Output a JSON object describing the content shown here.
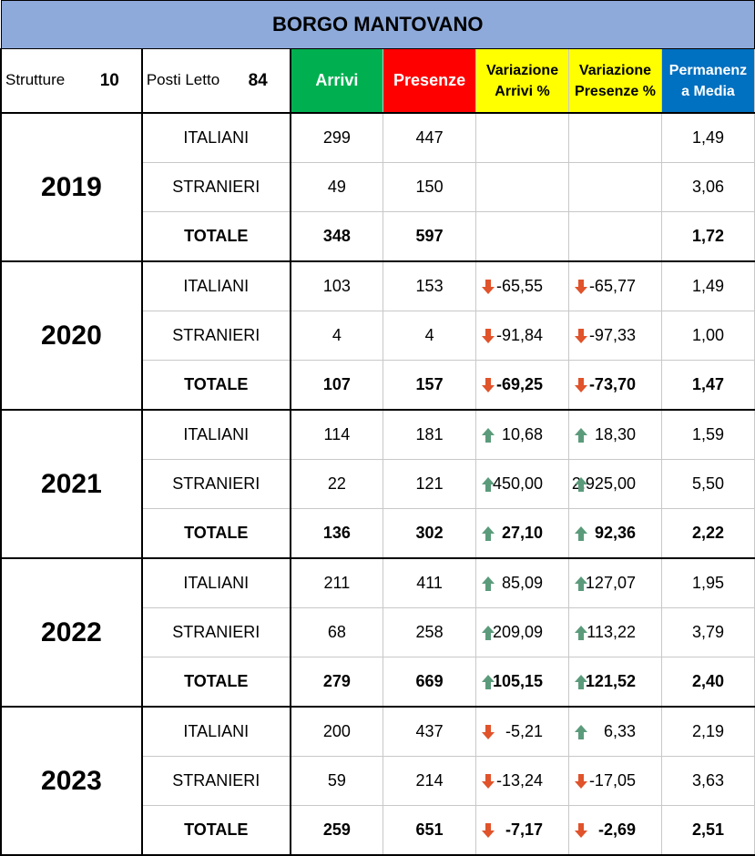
{
  "title": "BORGO MANTOVANO",
  "info": {
    "strutture_label": "Strutture",
    "strutture_value": "10",
    "posti_label": "Posti Letto",
    "posti_value": "84"
  },
  "headers": {
    "arrivi": "Arrivi",
    "presenze": "Presenze",
    "var_arrivi_1": "Variazione",
    "var_arrivi_2": "Arrivi %",
    "var_presenze_1": "Variazione",
    "var_presenze_2": "Presenze %",
    "perm_1": "Permanenz",
    "perm_2": "a Media"
  },
  "colors": {
    "arrivi": "#00b050",
    "presenze": "#ff0000",
    "variazione": "#ffff00",
    "permanenza": "#0070c0",
    "title": "#8eaadb",
    "arrow_up": "#5b9b7b",
    "arrow_down": "#e0532b"
  },
  "years": [
    {
      "year": "2019",
      "rows": [
        {
          "label": "ITALIANI",
          "arrivi": "299",
          "presenze": "447",
          "var_arrivi": "",
          "var_arrivi_dir": "",
          "var_presenze": "",
          "var_presenze_dir": "",
          "permanenza": "1,49"
        },
        {
          "label": "STRANIERI",
          "arrivi": "49",
          "presenze": "150",
          "var_arrivi": "",
          "var_arrivi_dir": "",
          "var_presenze": "",
          "var_presenze_dir": "",
          "permanenza": "3,06"
        },
        {
          "label": "TOTALE",
          "arrivi": "348",
          "presenze": "597",
          "var_arrivi": "",
          "var_arrivi_dir": "",
          "var_presenze": "",
          "var_presenze_dir": "",
          "permanenza": "1,72"
        }
      ]
    },
    {
      "year": "2020",
      "rows": [
        {
          "label": "ITALIANI",
          "arrivi": "103",
          "presenze": "153",
          "var_arrivi": "-65,55",
          "var_arrivi_dir": "down",
          "var_presenze": "-65,77",
          "var_presenze_dir": "down",
          "permanenza": "1,49"
        },
        {
          "label": "STRANIERI",
          "arrivi": "4",
          "presenze": "4",
          "var_arrivi": "-91,84",
          "var_arrivi_dir": "down",
          "var_presenze": "-97,33",
          "var_presenze_dir": "down",
          "permanenza": "1,00"
        },
        {
          "label": "TOTALE",
          "arrivi": "107",
          "presenze": "157",
          "var_arrivi": "-69,25",
          "var_arrivi_dir": "down",
          "var_presenze": "-73,70",
          "var_presenze_dir": "down",
          "permanenza": "1,47"
        }
      ]
    },
    {
      "year": "2021",
      "rows": [
        {
          "label": "ITALIANI",
          "arrivi": "114",
          "presenze": "181",
          "var_arrivi": "10,68",
          "var_arrivi_dir": "up",
          "var_presenze": "18,30",
          "var_presenze_dir": "up",
          "permanenza": "1,59"
        },
        {
          "label": "STRANIERI",
          "arrivi": "22",
          "presenze": "121",
          "var_arrivi": "450,00",
          "var_arrivi_dir": "up",
          "var_presenze": "2.925,00",
          "var_presenze_dir": "up",
          "permanenza": "5,50"
        },
        {
          "label": "TOTALE",
          "arrivi": "136",
          "presenze": "302",
          "var_arrivi": "27,10",
          "var_arrivi_dir": "up",
          "var_presenze": "92,36",
          "var_presenze_dir": "up",
          "permanenza": "2,22"
        }
      ]
    },
    {
      "year": "2022",
      "rows": [
        {
          "label": "ITALIANI",
          "arrivi": "211",
          "presenze": "411",
          "var_arrivi": "85,09",
          "var_arrivi_dir": "up",
          "var_presenze": "127,07",
          "var_presenze_dir": "up",
          "permanenza": "1,95"
        },
        {
          "label": "STRANIERI",
          "arrivi": "68",
          "presenze": "258",
          "var_arrivi": "209,09",
          "var_arrivi_dir": "up",
          "var_presenze": "113,22",
          "var_presenze_dir": "up",
          "permanenza": "3,79"
        },
        {
          "label": "TOTALE",
          "arrivi": "279",
          "presenze": "669",
          "var_arrivi": "105,15",
          "var_arrivi_dir": "up",
          "var_presenze": "121,52",
          "var_presenze_dir": "up",
          "permanenza": "2,40"
        }
      ]
    },
    {
      "year": "2023",
      "rows": [
        {
          "label": "ITALIANI",
          "arrivi": "200",
          "presenze": "437",
          "var_arrivi": "-5,21",
          "var_arrivi_dir": "down",
          "var_presenze": "6,33",
          "var_presenze_dir": "up",
          "permanenza": "2,19"
        },
        {
          "label": "STRANIERI",
          "arrivi": "59",
          "presenze": "214",
          "var_arrivi": "-13,24",
          "var_arrivi_dir": "down",
          "var_presenze": "-17,05",
          "var_presenze_dir": "down",
          "permanenza": "3,63"
        },
        {
          "label": "TOTALE",
          "arrivi": "259",
          "presenze": "651",
          "var_arrivi": "-7,17",
          "var_arrivi_dir": "down",
          "var_presenze": "-2,69",
          "var_presenze_dir": "down",
          "permanenza": "2,51"
        }
      ]
    }
  ]
}
